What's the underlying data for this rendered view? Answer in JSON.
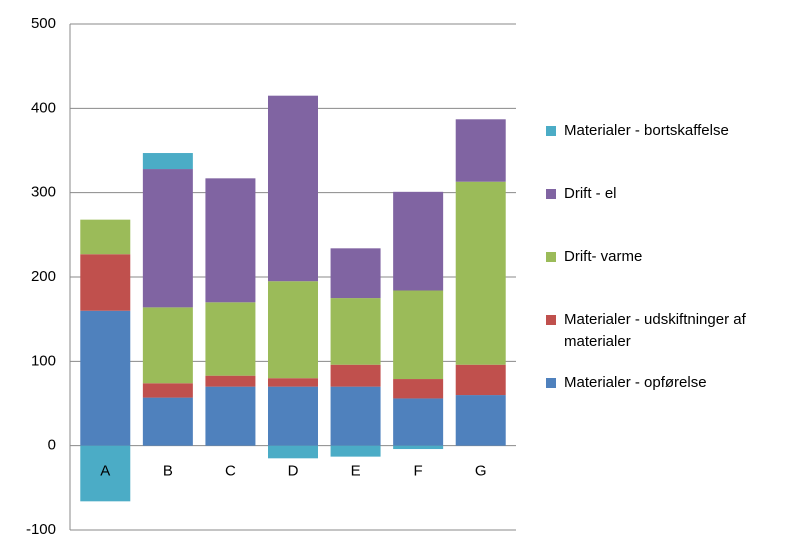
{
  "chart_data": {
    "type": "stacked_bar",
    "categories": [
      "A",
      "B",
      "C",
      "D",
      "E",
      "F",
      "G"
    ],
    "series": [
      {
        "name": "Materialer - opførelse",
        "color": "#4f81bd",
        "values": [
          160,
          57,
          70,
          70,
          70,
          56,
          60
        ]
      },
      {
        "name": "Materialer - udskiftninger af materialer",
        "color": "#c0504d",
        "values": [
          67,
          17,
          13,
          10,
          26,
          23,
          36
        ]
      },
      {
        "name": "Drift- varme",
        "color": "#9bbb59",
        "values": [
          41,
          90,
          87,
          115,
          79,
          105,
          217
        ]
      },
      {
        "name": "Drift - el",
        "color": "#8064a2",
        "values": [
          0,
          164,
          147,
          220,
          59,
          117,
          74
        ]
      },
      {
        "name": "Materialer - bortskaffelse",
        "color": "#4bacc6",
        "values": [
          -66,
          19,
          0,
          -15,
          -13,
          -4,
          0
        ]
      }
    ],
    "ylim": [
      -100,
      500
    ],
    "yticks": [
      -100,
      0,
      100,
      200,
      300,
      400,
      500
    ],
    "grid": true,
    "legend": "right"
  }
}
